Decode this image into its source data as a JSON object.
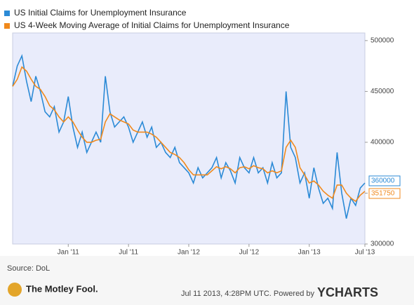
{
  "chart_data": {
    "type": "line",
    "categories": [
      null,
      null,
      null,
      null,
      null,
      null,
      null,
      null,
      null,
      null,
      null,
      null,
      "Jan '11",
      null,
      null,
      null,
      null,
      null,
      null,
      null,
      null,
      null,
      null,
      null,
      null,
      "Jul '11",
      null,
      null,
      null,
      null,
      null,
      null,
      null,
      null,
      null,
      null,
      null,
      null,
      "Jan '12",
      null,
      null,
      null,
      null,
      null,
      null,
      null,
      null,
      null,
      null,
      null,
      null,
      "Jul '12",
      null,
      null,
      null,
      null,
      null,
      null,
      null,
      null,
      null,
      null,
      null,
      null,
      "Jan '13",
      null,
      null,
      null,
      null,
      null,
      null,
      null,
      null,
      null,
      null,
      null,
      "Jul '13"
    ],
    "series": [
      {
        "name": "US Initial Claims for Unemployment Insurance",
        "color": "#2b8ad6",
        "values": [
          455000,
          475000,
          485000,
          460000,
          440000,
          465000,
          450000,
          430000,
          425000,
          435000,
          410000,
          420000,
          445000,
          415000,
          395000,
          410000,
          390000,
          400000,
          410000,
          400000,
          465000,
          430000,
          415000,
          420000,
          425000,
          415000,
          400000,
          410000,
          420000,
          405000,
          415000,
          395000,
          400000,
          390000,
          385000,
          395000,
          380000,
          375000,
          370000,
          360000,
          375000,
          365000,
          370000,
          375000,
          385000,
          365000,
          380000,
          372000,
          360000,
          385000,
          375000,
          370000,
          385000,
          370000,
          375000,
          360000,
          380000,
          365000,
          370000,
          450000,
          395000,
          385000,
          360000,
          370000,
          345000,
          375000,
          355000,
          340000,
          345000,
          335000,
          390000,
          350000,
          325000,
          345000,
          338000,
          355000,
          360000
        ]
      },
      {
        "name": "US 4-Week Moving Average of Initial Claims for Unemployment Insurance",
        "color": "#f0891c",
        "values": [
          455000,
          462000,
          474000,
          470000,
          462000,
          455000,
          452000,
          445000,
          436000,
          432000,
          425000,
          420000,
          425000,
          420000,
          412000,
          405000,
          400000,
          400000,
          402000,
          403000,
          420000,
          428000,
          425000,
          422000,
          420000,
          418000,
          412000,
          410000,
          410000,
          410000,
          408000,
          405000,
          400000,
          395000,
          390000,
          388000,
          385000,
          380000,
          373000,
          368000,
          368000,
          368000,
          368000,
          372000,
          376000,
          374000,
          376000,
          374000,
          370000,
          375000,
          376000,
          374000,
          377000,
          375000,
          374000,
          370000,
          372000,
          370000,
          372000,
          395000,
          402000,
          395000,
          375000,
          368000,
          360000,
          362000,
          358000,
          352000,
          348000,
          345000,
          358000,
          358000,
          350000,
          345000,
          342000,
          348000,
          351750
        ]
      }
    ],
    "ylim": [
      300000,
      507500
    ],
    "yticks": [
      300000,
      350000,
      400000,
      450000,
      500000
    ],
    "grid": false,
    "source": "Source: DoL",
    "brand": "The Motley Fool.",
    "timestamp": "Jul 11 2013, 4:28PM UTC. Powered by",
    "powered": "YCHARTS"
  }
}
